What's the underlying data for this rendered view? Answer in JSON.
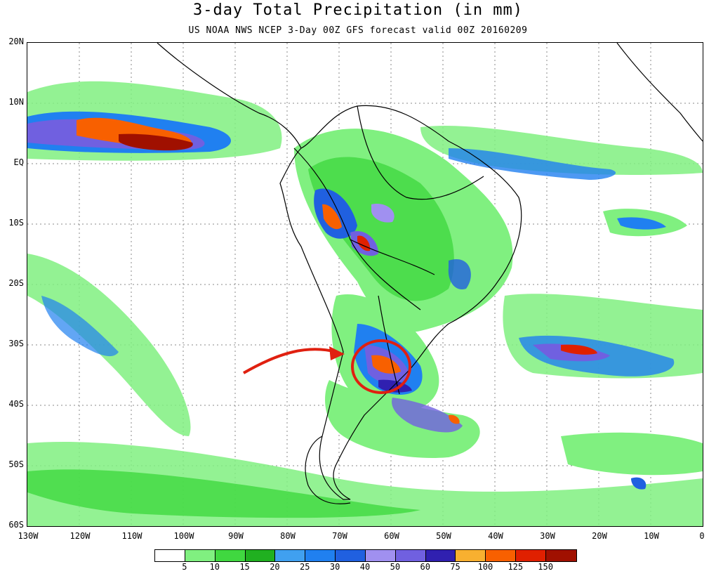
{
  "title": "3-day Total Precipitation (in mm)",
  "subtitle": "US NOAA NWS NCEP 3-Day 00Z GFS forecast valid 00Z 20160209",
  "lat_labels": [
    "20N",
    "10N",
    "EQ",
    "10S",
    "20S",
    "30S",
    "40S",
    "50S",
    "60S"
  ],
  "lon_labels": [
    "130W",
    "120W",
    "110W",
    "100W",
    "90W",
    "80W",
    "70W",
    "60W",
    "50W",
    "40W",
    "30W",
    "20W",
    "10W",
    "0"
  ],
  "legend": {
    "labels": [
      "5",
      "10",
      "15",
      "20",
      "25",
      "30",
      "40",
      "50",
      "60",
      "75",
      "100",
      "125",
      "150"
    ],
    "colors": [
      "#ffffff",
      "#80f080",
      "#40d840",
      "#20b020",
      "#40a0f0",
      "#2080f0",
      "#2060e0",
      "#a090f0",
      "#7060e0",
      "#3020b0",
      "#f8b030",
      "#f86000",
      "#e02000",
      "#a01000"
    ]
  },
  "annotation": {
    "arrow_color": "#e02010",
    "circle_color": "#e02010",
    "highlight_region": "Uruguay / northeastern Argentina"
  }
}
